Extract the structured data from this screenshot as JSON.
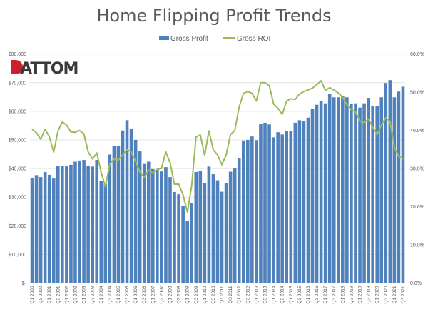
{
  "chart_data": {
    "type": "bar+line",
    "title": "Home Flipping  Profit Trends",
    "logo_text": "ATTOM",
    "legend_position": "top",
    "grid": true,
    "x_tick_labels": [
      "Q1 2000",
      "Q3 2000",
      "Q1 2001",
      "Q3 2001",
      "Q1 2002",
      "Q3 2002",
      "Q1 2003",
      "Q3 2003",
      "Q1 2004",
      "Q3 2004",
      "Q1 2005",
      "Q3 2005",
      "Q1 2006",
      "Q3 2006",
      "Q1 2007",
      "Q3 2007",
      "Q1 2008",
      "Q3 2008",
      "Q1 2009",
      "Q3 2009",
      "Q1 2010",
      "Q3 2010",
      "Q1 2011",
      "Q3 2011",
      "Q1 2012",
      "Q3 2012",
      "Q1 2013",
      "Q3 2013",
      "Q1 2014",
      "Q3 2014",
      "Q1 2015",
      "Q3 2015",
      "Q1 2016",
      "Q3 2016",
      "Q1 2017",
      "Q3 2017",
      "Q1 2018",
      "Q3 2018",
      "Q1 2019",
      "Q3 2019",
      "Q1 2020",
      "Q3 2020",
      "Q1 2021",
      "Q3 2021"
    ],
    "x_range": [
      "Q1 2000",
      "Q3 2021"
    ],
    "y_left": {
      "ticks": [
        "$-",
        "$10,000",
        "$20,000",
        "$30,000",
        "$40,000",
        "$50,000",
        "$60,000",
        "$70,000",
        "$80,000"
      ],
      "ylim": [
        0,
        80000
      ]
    },
    "y_right": {
      "ticks": [
        "0.0%",
        "10.0%",
        "20.0%",
        "30.0%",
        "40.0%",
        "50.0%",
        "60.0%"
      ],
      "ylim": [
        0,
        60
      ]
    },
    "series": [
      {
        "name": "Gross Profit",
        "type": "bar",
        "axis": "left",
        "color": "#4f81bd",
        "values": [
          36700,
          37700,
          37000,
          38800,
          37800,
          36500,
          40800,
          41000,
          41000,
          41300,
          42400,
          42800,
          43000,
          41000,
          40700,
          43000,
          35700,
          34500,
          44900,
          48000,
          48000,
          53300,
          56900,
          54000,
          50000,
          46000,
          41600,
          42400,
          39800,
          39800,
          39000,
          40500,
          37000,
          31800,
          31000,
          26800,
          21800,
          27800,
          38800,
          39200,
          35000,
          40700,
          38000,
          35900,
          31900,
          34900,
          38900,
          40000,
          43700,
          49800,
          50000,
          51200,
          49900,
          55700,
          56000,
          55400,
          50900,
          52700,
          51900,
          53000,
          53000,
          56000,
          56900,
          56600,
          57800,
          60800,
          62300,
          63600,
          62800,
          66000,
          64900,
          64900,
          65300,
          64900,
          62500,
          62800,
          61300,
          62800,
          64700,
          61900,
          61900,
          64900,
          69900,
          70900,
          64900,
          66900,
          68600
        ]
      },
      {
        "name": "Gross ROI",
        "type": "line",
        "axis": "right",
        "color": "#9bbb59",
        "values": [
          40.3,
          39.4,
          37.7,
          40.3,
          38.3,
          34.3,
          39.9,
          42.2,
          41.4,
          39.6,
          39.5,
          40.0,
          39.1,
          34.4,
          32.5,
          34.1,
          29.0,
          25.2,
          31.2,
          32.5,
          32.2,
          33.5,
          35.0,
          34.3,
          31.9,
          29.0,
          27.6,
          29.6,
          28.8,
          29.8,
          30.0,
          34.4,
          31.5,
          25.9,
          25.9,
          23.1,
          18.6,
          25.5,
          38.3,
          38.8,
          33.5,
          39.9,
          34.9,
          33.6,
          31.0,
          33.6,
          38.9,
          40.0,
          46.1,
          49.7,
          50.2,
          49.7,
          47.7,
          52.5,
          52.5,
          51.7,
          46.9,
          45.8,
          44.2,
          47.7,
          48.3,
          48.1,
          49.5,
          50.2,
          50.6,
          51.1,
          52.0,
          53.0,
          50.5,
          51.2,
          50.6,
          49.8,
          48.7,
          46.7,
          45.5,
          44.9,
          42.4,
          42.1,
          43.0,
          40.8,
          38.9,
          41.4,
          43.3,
          42.4,
          35.5,
          33.3,
          32.5
        ]
      }
    ]
  }
}
